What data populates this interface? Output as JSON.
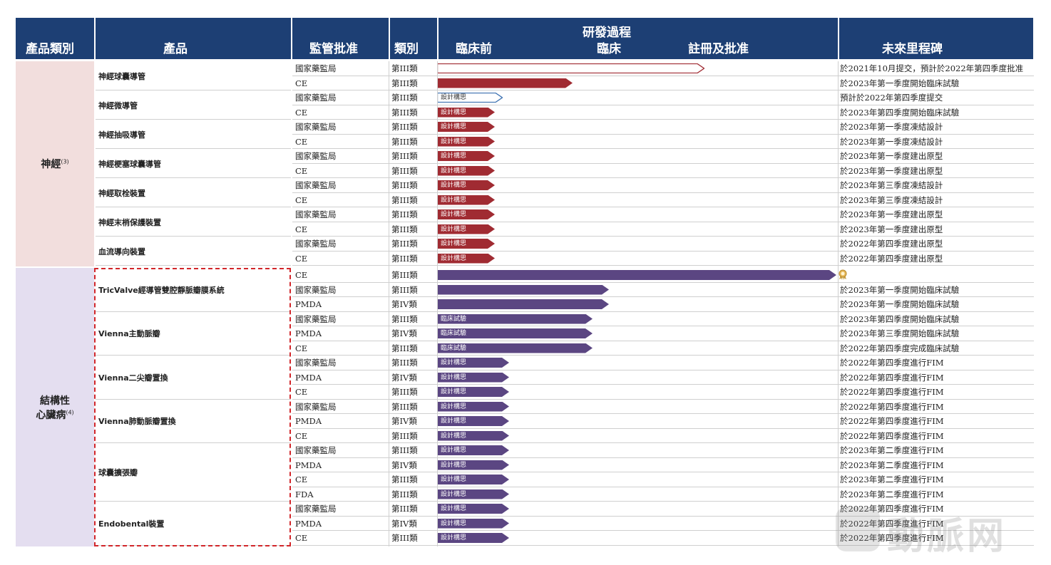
{
  "header": {
    "category": "產品類別",
    "product": "產品",
    "approval": "監管批准",
    "class": "類別",
    "process": "研發過程",
    "preclinical": "臨床前",
    "clinical": "臨床",
    "registration": "註冊及批准",
    "milestone": "未來里程碑"
  },
  "colors": {
    "header_bg": "#1d3f74",
    "neuro_bg": "#f2dedd",
    "cardio_bg": "#e4def0",
    "red_bar": "#a02b32",
    "purple_bar": "#5b4682",
    "dash": "#d2262a"
  },
  "categories": [
    {
      "label": "神經",
      "sup": "(3)"
    },
    {
      "label": "結構性",
      "label2": "心臟病",
      "sup": "(4)"
    }
  ],
  "products": [
    "神經球囊導管",
    "神經微導管",
    "神經抽吸導管",
    "神經梗塞球囊導管",
    "神經取栓裝置",
    "神經末梢保護裝置",
    "血流導向裝置",
    "TricValve經導管雙腔靜脈瓣膜系統",
    "Vienna主動脈瓣",
    "Vienna二尖瓣置換",
    "Vienna肺動脈瓣置換",
    "球囊擴張瓣",
    "Endobental裝置"
  ],
  "rows": [
    {
      "reg": "國家藥監局",
      "cls": "第III類",
      "bar": "outline-red",
      "len": 0.67,
      "label": "",
      "ms": "於2021年10月提交，預計於2022年第四季度批准"
    },
    {
      "reg": "CE",
      "cls": "第III類",
      "bar": "red",
      "len": 0.34,
      "label": "",
      "ms": "於2023年第一季度開始臨床試驗"
    },
    {
      "reg": "國家藥監局",
      "cls": "第III類",
      "bar": "outline-blue",
      "len": 0.164,
      "label": "設計構思",
      "ms": "預計於2022年第四季度提交"
    },
    {
      "reg": "CE",
      "cls": "第III類",
      "bar": "red",
      "len": 0.145,
      "label": "設計構思",
      "ms": "於2023年第四季度開始臨床試驗"
    },
    {
      "reg": "國家藥監局",
      "cls": "第III類",
      "bar": "red",
      "len": 0.145,
      "label": "設計構思",
      "ms": "於2023年第一季度凍結設計"
    },
    {
      "reg": "CE",
      "cls": "第III類",
      "bar": "red",
      "len": 0.145,
      "label": "設計構思",
      "ms": "於2023年第一季度凍結設計"
    },
    {
      "reg": "國家藥監局",
      "cls": "第III類",
      "bar": "red",
      "len": 0.145,
      "label": "設計構思",
      "ms": "於2023年第一季度建出原型"
    },
    {
      "reg": "CE",
      "cls": "第III類",
      "bar": "red",
      "len": 0.145,
      "label": "設計構思",
      "ms": "於2023年第一季度建出原型"
    },
    {
      "reg": "國家藥監局",
      "cls": "第III類",
      "bar": "red",
      "len": 0.145,
      "label": "設計構思",
      "ms": "於2023年第三季度凍結設計"
    },
    {
      "reg": "CE",
      "cls": "第III類",
      "bar": "red",
      "len": 0.145,
      "label": "設計構思",
      "ms": "於2023年第三季度凍結設計"
    },
    {
      "reg": "國家藥監局",
      "cls": "第III類",
      "bar": "red",
      "len": 0.145,
      "label": "設計構思",
      "ms": "於2023年第一季度建出原型"
    },
    {
      "reg": "CE",
      "cls": "第III類",
      "bar": "red",
      "len": 0.145,
      "label": "設計構思",
      "ms": "於2023年第一季度建出原型"
    },
    {
      "reg": "國家藥監局",
      "cls": "第III類",
      "bar": "red",
      "len": 0.145,
      "label": "設計構思",
      "ms": "於2022年第四季度建出原型"
    },
    {
      "reg": "CE",
      "cls": "第III類",
      "bar": "red",
      "len": 0.145,
      "label": "設計構思",
      "ms": "於2022年第四季度建出原型"
    },
    {
      "reg": "CE",
      "cls": "第III類",
      "bar": "purple",
      "len": 1.0,
      "label": "",
      "ms": ""
    },
    {
      "reg": "國家藥監局",
      "cls": "第III類",
      "bar": "purple",
      "len": 0.43,
      "label": "",
      "ms": "於2023年第一季度開始臨床試驗"
    },
    {
      "reg": "PMDA",
      "cls": "第IV類",
      "bar": "purple",
      "len": 0.43,
      "label": "",
      "ms": "於2023年第一季度開始臨床試驗"
    },
    {
      "reg": "國家藥監局",
      "cls": "第III類",
      "bar": "purple",
      "len": 0.39,
      "label": "臨床試驗",
      "ms": "於2023年第四季度開始臨床試驗"
    },
    {
      "reg": "PMDA",
      "cls": "第IV類",
      "bar": "purple",
      "len": 0.39,
      "label": "臨床試驗",
      "ms": "於2023年第三季度開始臨床試驗"
    },
    {
      "reg": "CE",
      "cls": "第III類",
      "bar": "purple",
      "len": 0.39,
      "label": "臨床試驗",
      "ms": "於2022年第四季度完成臨床試驗"
    },
    {
      "reg": "國家藥監局",
      "cls": "第III類",
      "bar": "purple",
      "len": 0.18,
      "label": "設計構思",
      "ms": "於2022年第四季度進行FIM"
    },
    {
      "reg": "PMDA",
      "cls": "第IV類",
      "bar": "purple",
      "len": 0.18,
      "label": "設計構思",
      "ms": "於2022年第四季度進行FIM"
    },
    {
      "reg": "CE",
      "cls": "第III類",
      "bar": "purple",
      "len": 0.18,
      "label": "設計構思",
      "ms": "於2022年第四季度進行FIM"
    },
    {
      "reg": "國家藥監局",
      "cls": "第III類",
      "bar": "purple",
      "len": 0.18,
      "label": "設計構思",
      "ms": "於2022年第四季度進行FIM"
    },
    {
      "reg": "PMDA",
      "cls": "第IV類",
      "bar": "purple",
      "len": 0.18,
      "label": "設計構思",
      "ms": "於2022年第四季度進行FIM"
    },
    {
      "reg": "CE",
      "cls": "第III類",
      "bar": "purple",
      "len": 0.18,
      "label": "設計構思",
      "ms": "於2022年第四季度進行FIM"
    },
    {
      "reg": "國家藥監局",
      "cls": "第III類",
      "bar": "purple",
      "len": 0.18,
      "label": "設計構思",
      "ms": "於2023年第二季度進行FIM"
    },
    {
      "reg": "PMDA",
      "cls": "第IV類",
      "bar": "purple",
      "len": 0.18,
      "label": "設計構思",
      "ms": "於2023年第二季度進行FIM"
    },
    {
      "reg": "CE",
      "cls": "第III類",
      "bar": "purple",
      "len": 0.18,
      "label": "設計構思",
      "ms": "於2023年第二季度進行FIM"
    },
    {
      "reg": "FDA",
      "cls": "第III類",
      "bar": "purple",
      "len": 0.18,
      "label": "設計構思",
      "ms": "於2023年第二季度進行FIM"
    },
    {
      "reg": "國家藥監局",
      "cls": "第III類",
      "bar": "purple",
      "len": 0.18,
      "label": "設計構思",
      "ms": "於2022年第四季度進行FIM"
    },
    {
      "reg": "PMDA",
      "cls": "第IV類",
      "bar": "purple",
      "len": 0.18,
      "label": "設計構思",
      "ms": "於2022年第四季度進行FIM"
    },
    {
      "reg": "CE",
      "cls": "第III類",
      "bar": "purple",
      "len": 0.18,
      "label": "設計構思",
      "ms": "於2022年第四季度進行FIM"
    }
  ],
  "medal_icon": "award-medal-icon",
  "watermark": "動脈网"
}
